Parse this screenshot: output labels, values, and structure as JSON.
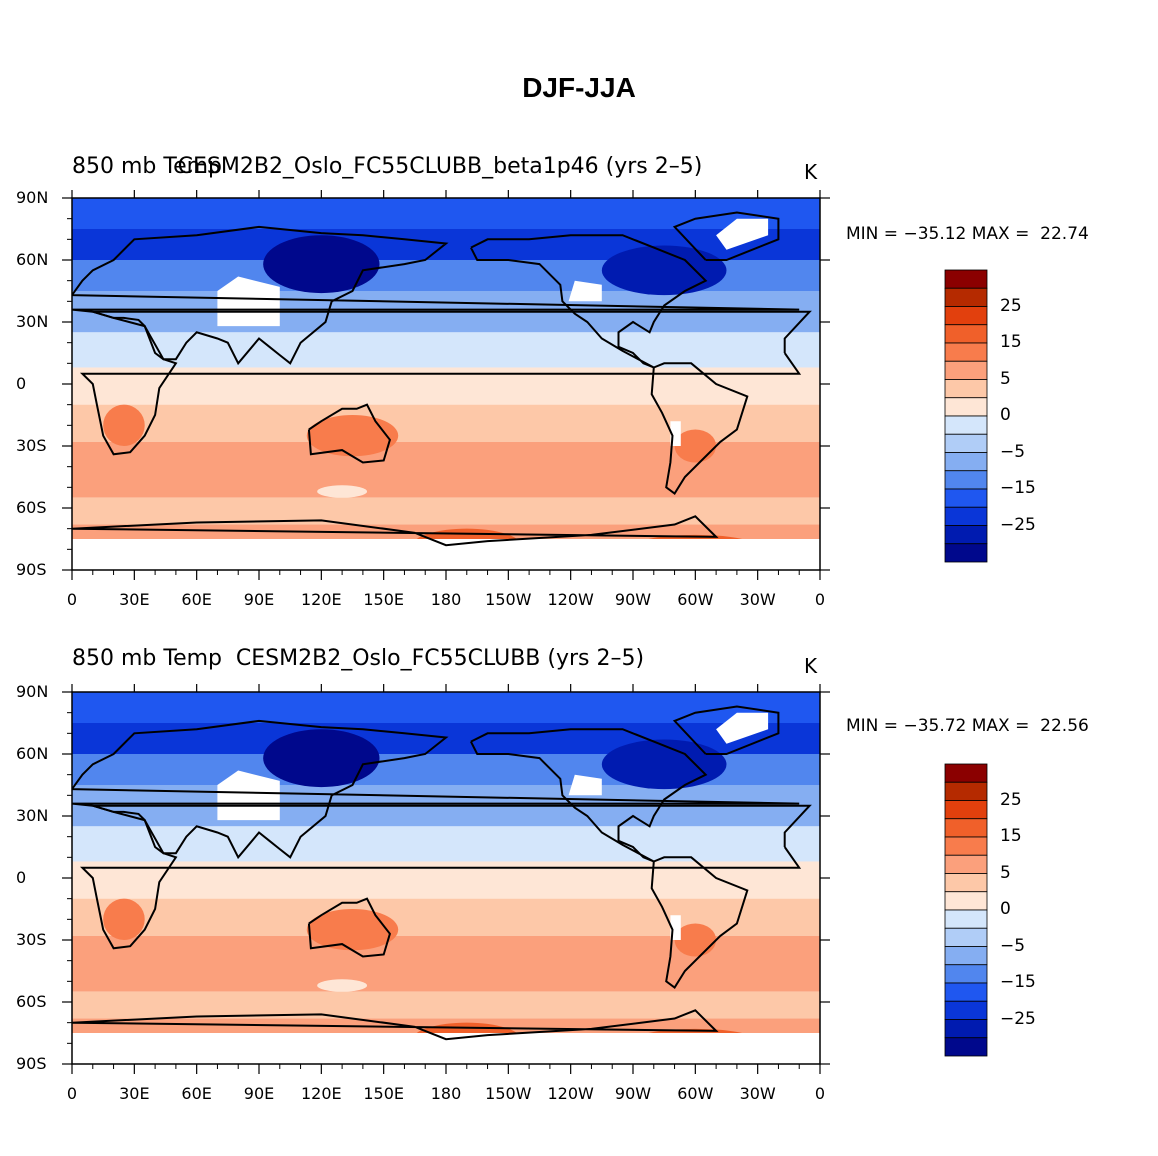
{
  "title": "DJF-JJA",
  "units": "K",
  "lat_labels": [
    "90N",
    "60N",
    "30N",
    "0",
    "30S",
    "60S",
    "90S"
  ],
  "lon_labels": [
    "0",
    "30E",
    "60E",
    "90E",
    "120E",
    "150E",
    "180",
    "150W",
    "120W",
    "90W",
    "60W",
    "30W",
    "0"
  ],
  "colorbar": {
    "labels": [
      "25",
      "15",
      "5",
      "0",
      "-5",
      "-15",
      "-25"
    ],
    "colors": [
      "#8b0000",
      "#b52a00",
      "#e2400d",
      "#f0602a",
      "#f87c4c",
      "#fba07c",
      "#fdc8a8",
      "#fee6d6",
      "#d4e6fb",
      "#b0cdf7",
      "#85aef2",
      "#5186ee",
      "#1f57f0",
      "#0a36d8",
      "#001bb0",
      "#00088c"
    ]
  },
  "panels": [
    {
      "left_title": "850 mb Temp",
      "center_title": "CESM2B2_Oslo_FC55CLUBB_beta1p46 (yrs 2–5)",
      "units": "K",
      "min": "-35.12",
      "max": "22.74",
      "minmax_text": "MIN = −35.12 MAX =  22.74"
    },
    {
      "left_title": "850 mb Temp",
      "center_title": "CESM2B2_Oslo_FC55CLUBB (yrs 2–5)",
      "units": "K",
      "min": "-35.72",
      "max": "22.56",
      "minmax_text": "MIN = −35.72 MAX =  22.56"
    }
  ],
  "bands": [
    {
      "name": "polar-north",
      "color": "#1f57f0"
    },
    {
      "name": "north-high",
      "color": "#0a36d8"
    },
    {
      "name": "north-mid",
      "color": "#5186ee"
    },
    {
      "name": "north-sub",
      "color": "#85aef2"
    },
    {
      "name": "tropics-north",
      "color": "#d4e6fb"
    },
    {
      "name": "equator",
      "color": "#fee6d6"
    },
    {
      "name": "south-sub",
      "color": "#fdc8a8"
    },
    {
      "name": "south-mid",
      "color": "#fba07c"
    },
    {
      "name": "south-high",
      "color": "#fdc8a8"
    },
    {
      "name": "antarctic",
      "color": "#fba07c"
    }
  ]
}
